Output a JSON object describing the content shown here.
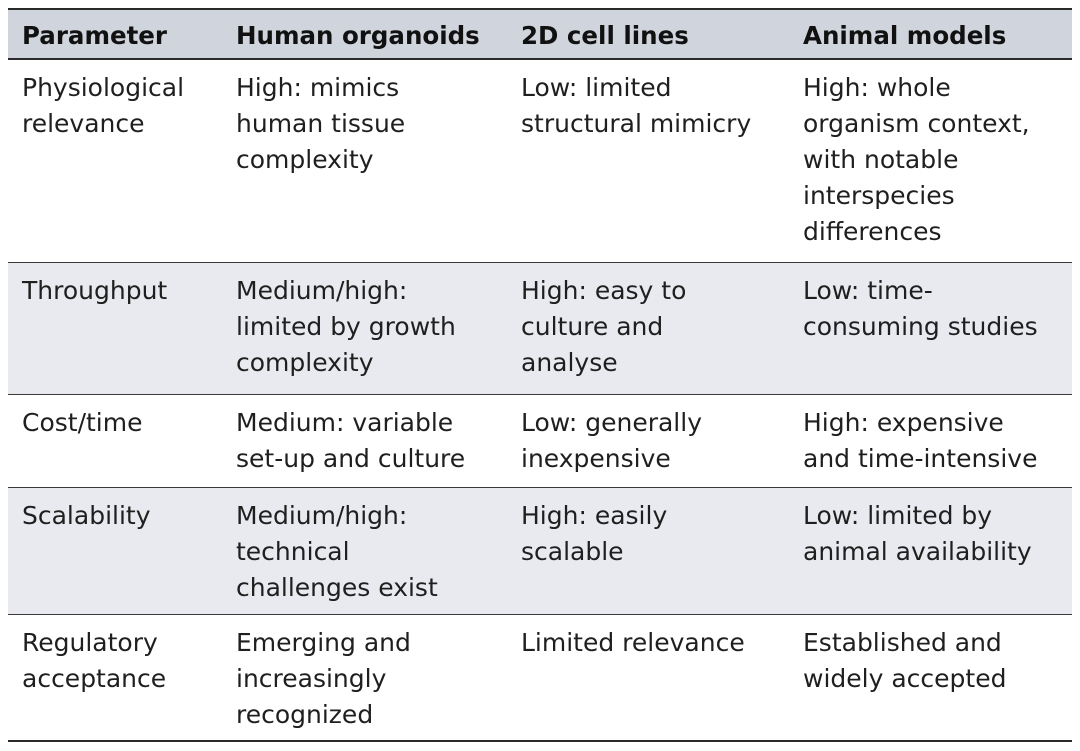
{
  "table": {
    "headers": [
      "Parameter",
      "Human organoids",
      "2D cell lines",
      "Animal models"
    ],
    "rows": [
      [
        "Physiological\nrelevance",
        "High: mimics\nhuman tissue\ncomplexity",
        "Low: limited\nstructural mimicry",
        "High: whole\norganism context,\nwith notable\ninterspecies\ndifferences"
      ],
      [
        "Throughput",
        "Medium/high:\nlimited by growth\ncomplexity",
        "High: easy to\nculture and\nanalyse",
        "Low: time-\nconsuming studies"
      ],
      [
        "Cost/time",
        "Medium: variable\nset-up and culture",
        "Low: generally\ninexpensive",
        "High: expensive\nand time-intensive"
      ],
      [
        "Scalability",
        "Medium/high:\ntechnical\nchallenges exist",
        "High: easily\nscalable",
        "Low: limited by\nanimal availability"
      ],
      [
        "Regulatory\nacceptance",
        "Emerging and\nincreasingly\nrecognized",
        "Limited relevance",
        "Established and\nwidely accepted"
      ]
    ]
  }
}
